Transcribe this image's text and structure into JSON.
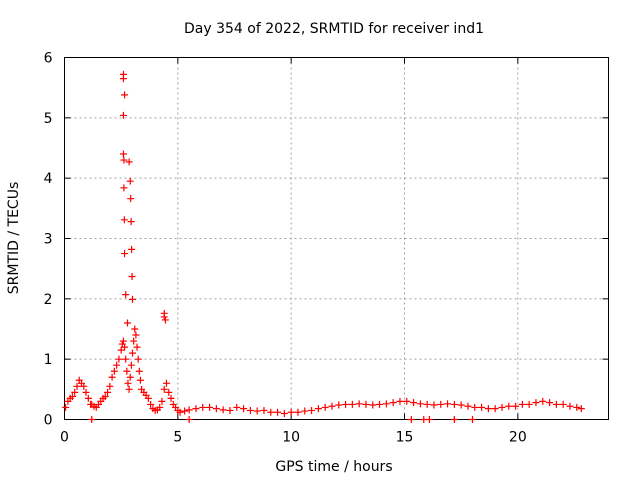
{
  "chart_data": {
    "type": "scatter",
    "title": "Day 354 of 2022, SRMTID for receiver ind1",
    "xlabel": "GPS time / hours",
    "ylabel": "SRMTID / TECUs",
    "xlim": [
      0,
      24
    ],
    "ylim": [
      0,
      6
    ],
    "xticks": [
      0,
      5,
      10,
      15,
      20
    ],
    "yticks": [
      0,
      1,
      2,
      3,
      4,
      5,
      6
    ],
    "grid": true,
    "marker": "+",
    "color": "#ff0000",
    "series": [
      {
        "name": "SRMTID",
        "x": [
          0.05,
          0.15,
          0.25,
          0.35,
          0.45,
          0.55,
          0.65,
          0.75,
          0.85,
          0.95,
          1.05,
          1.15,
          1.2,
          1.3,
          1.4,
          1.5,
          1.6,
          1.7,
          1.8,
          1.9,
          2.0,
          2.1,
          2.2,
          2.3,
          2.4,
          2.5,
          2.55,
          2.6,
          2.65,
          2.7,
          2.75,
          2.8,
          2.85,
          2.9,
          2.95,
          3.0,
          3.05,
          3.1,
          3.15,
          3.2,
          3.25,
          3.3,
          3.35,
          3.4,
          3.5,
          3.6,
          3.7,
          3.8,
          3.9,
          4.0,
          4.1,
          4.2,
          4.3,
          4.4,
          4.5,
          4.6,
          4.7,
          4.8,
          4.9,
          5.0,
          5.1,
          5.3,
          5.5,
          5.8,
          6.1,
          6.4,
          6.7,
          7.0,
          7.3,
          7.6,
          7.9,
          8.2,
          8.5,
          8.8,
          9.1,
          9.4,
          9.7,
          10.0,
          10.3,
          10.6,
          10.9,
          11.2,
          11.5,
          11.8,
          12.1,
          12.4,
          12.7,
          13.0,
          13.3,
          13.6,
          13.9,
          14.2,
          14.5,
          14.8,
          15.1,
          15.4,
          15.7,
          16.0,
          16.3,
          16.6,
          16.9,
          17.2,
          17.5,
          17.8,
          18.1,
          18.4,
          18.7,
          19.0,
          19.3,
          19.6,
          19.9,
          20.2,
          20.5,
          20.8,
          21.1,
          21.4,
          21.7,
          22.0,
          22.3,
          22.6,
          22.8,
          2.6,
          2.6,
          2.65,
          2.6,
          2.6,
          2.62,
          2.62,
          2.64,
          2.65,
          2.7,
          2.78,
          2.85,
          2.9,
          2.92,
          2.94,
          2.96,
          2.98,
          3.0,
          4.4,
          4.4,
          4.45,
          1.2,
          5.5,
          15.3,
          16.1,
          17.2,
          18.0,
          15.85
        ],
        "y": [
          0.2,
          0.3,
          0.35,
          0.38,
          0.45,
          0.55,
          0.65,
          0.6,
          0.55,
          0.45,
          0.35,
          0.25,
          0.25,
          0.22,
          0.2,
          0.25,
          0.3,
          0.35,
          0.38,
          0.45,
          0.55,
          0.7,
          0.8,
          0.9,
          1.0,
          1.15,
          1.25,
          1.3,
          1.2,
          1.0,
          0.8,
          0.6,
          0.5,
          0.7,
          0.9,
          1.1,
          1.3,
          1.5,
          1.4,
          1.2,
          1.0,
          0.8,
          0.65,
          0.5,
          0.45,
          0.4,
          0.35,
          0.25,
          0.18,
          0.15,
          0.16,
          0.2,
          0.3,
          0.5,
          0.6,
          0.45,
          0.35,
          0.25,
          0.2,
          0.15,
          0.12,
          0.14,
          0.16,
          0.18,
          0.2,
          0.2,
          0.18,
          0.16,
          0.15,
          0.2,
          0.18,
          0.15,
          0.14,
          0.15,
          0.12,
          0.12,
          0.1,
          0.12,
          0.12,
          0.14,
          0.15,
          0.18,
          0.2,
          0.22,
          0.24,
          0.25,
          0.25,
          0.26,
          0.25,
          0.24,
          0.25,
          0.26,
          0.28,
          0.3,
          0.3,
          0.28,
          0.26,
          0.25,
          0.24,
          0.25,
          0.26,
          0.25,
          0.24,
          0.22,
          0.2,
          0.2,
          0.18,
          0.18,
          0.2,
          0.22,
          0.22,
          0.25,
          0.25,
          0.28,
          0.3,
          0.28,
          0.25,
          0.25,
          0.22,
          0.2,
          0.18,
          5.72,
          5.65,
          5.38,
          5.04,
          4.4,
          4.3,
          3.84,
          3.31,
          2.75,
          2.07,
          1.6,
          4.27,
          3.95,
          3.66,
          3.28,
          2.82,
          2.37,
          1.99,
          1.76,
          1.7,
          1.65,
          0.0,
          0.0,
          0.0,
          0.0,
          0.0,
          0.0,
          0.0
        ]
      }
    ]
  }
}
